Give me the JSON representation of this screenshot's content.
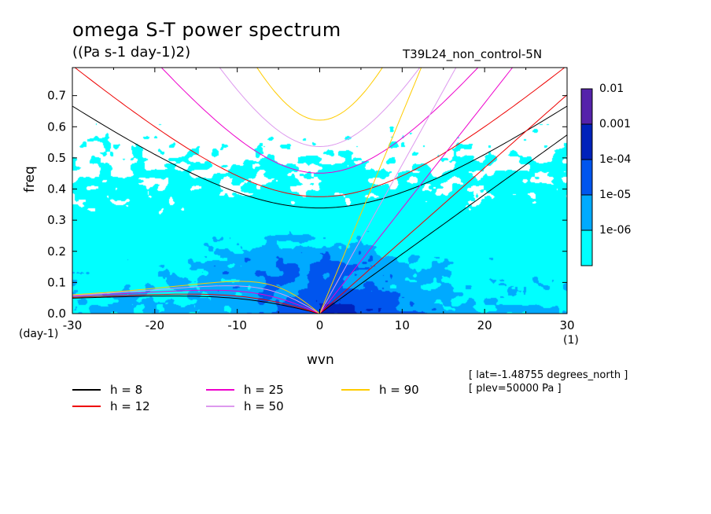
{
  "chart_data": {
    "type": "heatmap",
    "title": "omega S-T power spectrum",
    "units": "((Pa s-1 day-1)2)",
    "run_label": "T39L24_non_control-5N",
    "xlabel": "wvn",
    "ylabel": "freq",
    "x_unit": "(1)",
    "y_unit": "(day-1)",
    "xlim": [
      -30,
      30
    ],
    "ylim": [
      0,
      0.79
    ],
    "xticks": [
      -30,
      -20,
      -10,
      0,
      10,
      20,
      30
    ],
    "xtick_labels": [
      "-30",
      "-20",
      "-10",
      "0",
      "10",
      "20",
      "30"
    ],
    "yticks": [
      0,
      0.1,
      0.2,
      0.3,
      0.4,
      0.5,
      0.6,
      0.7
    ],
    "ytick_labels": [
      "0.0",
      "0.1",
      "0.2",
      "0.3",
      "0.4",
      "0.5",
      "0.6",
      "0.7"
    ],
    "colorbar": {
      "levels": [
        "1e-06",
        "1e-05",
        "1e-04",
        "0.001",
        "0.01"
      ],
      "colors": [
        "#00ffff",
        "#00aaff",
        "#0055ee",
        "#0022bb",
        "#5522aa"
      ]
    },
    "dispersion_curves": [
      {
        "name": "h =  8",
        "h": 8,
        "color": "#000000"
      },
      {
        "name": "h = 12",
        "h": 12,
        "color": "#ee0000"
      },
      {
        "name": "h = 25",
        "h": 25,
        "color": "#ee00cc"
      },
      {
        "name": "h = 50",
        "h": 50,
        "color": "#dd99ee"
      },
      {
        "name": "h = 90",
        "h": 90,
        "color": "#ffcc00"
      }
    ],
    "annotations": [
      "[ lat=-1.48755 degrees_north ]",
      "[ plev=50000 Pa ]"
    ]
  }
}
